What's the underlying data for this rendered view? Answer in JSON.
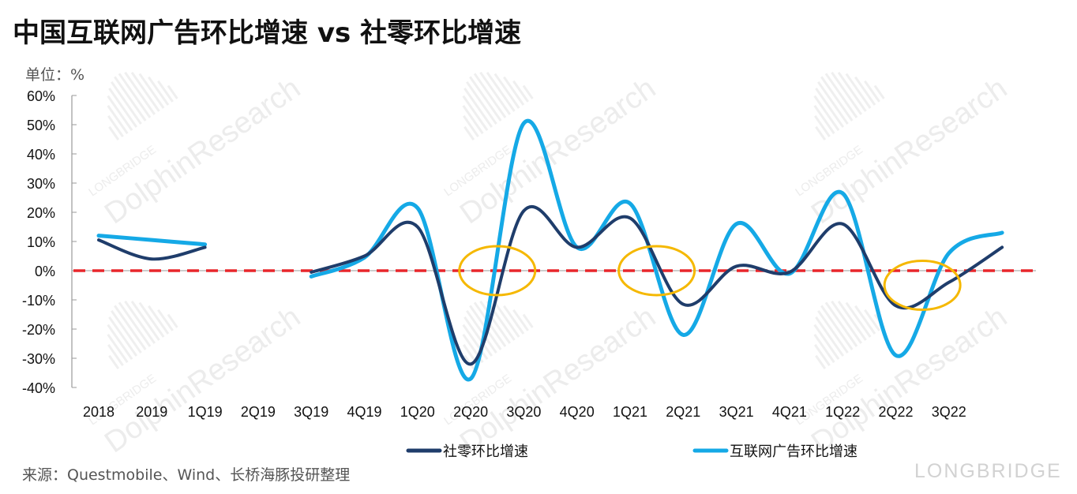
{
  "title": "中国互联网广告环比增速 vs 社零环比增速",
  "unit_label": "单位：%",
  "source": "来源：Questmobile、Wind、长桥海豚投研整理",
  "watermark": {
    "brand": "LONGBRIDGE",
    "tag": "DolphinResearch"
  },
  "chart_data": {
    "type": "line",
    "categories": [
      "2018",
      "2019",
      "1Q19",
      "2Q19",
      "3Q19",
      "4Q19",
      "1Q20",
      "2Q20",
      "3Q20",
      "4Q20",
      "1Q21",
      "2Q21",
      "3Q21",
      "4Q21",
      "1Q22",
      "2Q22",
      "3Q22",
      ""
    ],
    "y_ticks": [
      "60%",
      "50%",
      "40%",
      "30%",
      "20%",
      "10%",
      "0%",
      "-10%",
      "-20%",
      "-30%",
      "-40%"
    ],
    "ylim": [
      -40,
      60
    ],
    "y_unit": "%",
    "reference_line": {
      "y": 0,
      "color": "#e8262b",
      "style": "dashed"
    },
    "series": [
      {
        "name": "社零环比增速",
        "color": "#1f3d6b",
        "values": [
          10.5,
          4,
          8,
          null,
          -0.5,
          5,
          15,
          -32,
          20.5,
          8,
          18,
          -11.5,
          1.5,
          -0.5,
          16,
          -12,
          -4,
          8
        ]
      },
      {
        "name": "互联网广告环比增速",
        "color": "#15a9e6",
        "values": [
          12,
          10.5,
          9,
          null,
          -2,
          4.5,
          21.5,
          -37,
          50.5,
          8,
          23,
          -22,
          16,
          -1,
          26.5,
          -29,
          6,
          13
        ]
      }
    ],
    "highlights": [
      {
        "label": "",
        "between": [
          "2Q20",
          "3Q20"
        ],
        "y": 0,
        "color": "#f5b800"
      },
      {
        "label": "",
        "between": [
          "1Q21",
          "2Q21"
        ],
        "y": 0,
        "color": "#f5b800"
      },
      {
        "label": "",
        "between": [
          "2Q22",
          "3Q22"
        ],
        "y": -5,
        "color": "#f5b800"
      }
    ],
    "legend_position": "bottom",
    "grid": false
  }
}
